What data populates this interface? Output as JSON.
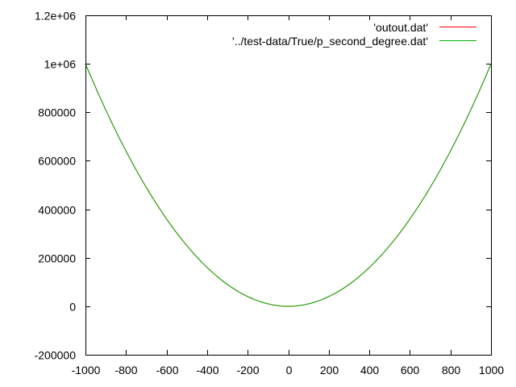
{
  "chart_data": {
    "type": "line",
    "title": "",
    "xlabel": "",
    "ylabel": "",
    "xlim": [
      -1000,
      1000
    ],
    "ylim": [
      -200000,
      1200000
    ],
    "x_ticks": [
      -1000,
      -800,
      -600,
      -400,
      -200,
      0,
      200,
      400,
      600,
      800,
      1000
    ],
    "x_tick_labels": [
      "-1000",
      "-800",
      "-600",
      "-400",
      "-200",
      "0",
      "200",
      "400",
      "600",
      "800",
      "1000"
    ],
    "y_ticks": [
      -200000,
      0,
      200000,
      400000,
      600000,
      800000,
      1000000,
      1200000
    ],
    "y_tick_labels": [
      "-200000",
      "0",
      "200000",
      "400000",
      "600000",
      "800000",
      "1e+06",
      "1.2e+06"
    ],
    "grid": false,
    "legend_position": "top-right",
    "series": [
      {
        "name": "'outout.dat'",
        "color": "#ff0000",
        "x": [
          -1000,
          -900,
          -800,
          -700,
          -600,
          -500,
          -400,
          -300,
          -200,
          -100,
          0,
          100,
          200,
          300,
          400,
          500,
          600,
          700,
          800,
          900,
          1000
        ],
        "y": [
          1000000,
          810000,
          640000,
          490000,
          360000,
          250000,
          160000,
          90000,
          40000,
          10000,
          0,
          10000,
          40000,
          90000,
          160000,
          250000,
          360000,
          490000,
          640000,
          810000,
          1000000
        ]
      },
      {
        "name": "'../test-data/True/p_second_degree.dat'",
        "color": "#00b000",
        "x": [
          -1000,
          -900,
          -800,
          -700,
          -600,
          -500,
          -400,
          -300,
          -200,
          -100,
          0,
          100,
          200,
          300,
          400,
          500,
          600,
          700,
          800,
          900,
          1000
        ],
        "y": [
          1000000,
          810000,
          640000,
          490000,
          360000,
          250000,
          160000,
          90000,
          40000,
          10000,
          0,
          10000,
          40000,
          90000,
          160000,
          250000,
          360000,
          490000,
          640000,
          810000,
          1000000
        ]
      }
    ]
  }
}
